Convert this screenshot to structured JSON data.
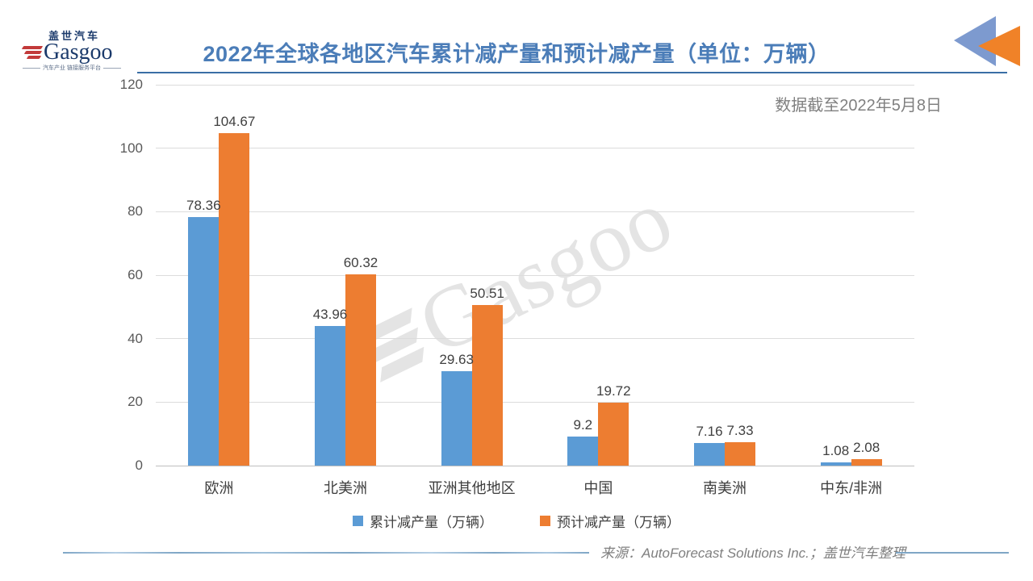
{
  "header": {
    "logo": {
      "cn": "盖世汽车",
      "en": "Gasgoo",
      "tagline": "汽车产业 链接服务平台",
      "stripes_icon": "logo-stripes-icon"
    },
    "title": "2022年全球各地区汽车累计减产量和预计减产量（单位：万辆）",
    "corner_icon": "double-triangle-icon"
  },
  "note": "数据截至2022年5月8日",
  "chart_data": {
    "type": "bar",
    "title": "2022年全球各地区汽车累计减产量和预计减产量（单位：万辆）",
    "categories": [
      "欧洲",
      "北美洲",
      "亚洲其他地区",
      "中国",
      "南美洲",
      "中东/非洲"
    ],
    "series": [
      {
        "name": "累计减产量（万辆）",
        "color": "#5B9BD5",
        "values": [
          78.36,
          43.96,
          29.63,
          9.2,
          7.16,
          1.08
        ]
      },
      {
        "name": "预计减产量（万辆）",
        "color": "#ED7D31",
        "values": [
          104.67,
          60.32,
          50.51,
          19.72,
          7.33,
          2.08
        ]
      }
    ],
    "xlabel": "",
    "ylabel": "",
    "ylim": [
      0,
      120
    ],
    "yticks": [
      0,
      20,
      40,
      60,
      80,
      100,
      120
    ],
    "grid": true,
    "value_labels": true,
    "legend_position": "bottom"
  },
  "watermark": "Gasgoo",
  "footer": {
    "source": "来源：AutoForecast Solutions Inc.；盖世汽车整理"
  },
  "colors": {
    "bar_blue": "#5B9BD5",
    "bar_orange": "#ED7D31",
    "title": "#4B7DB8",
    "title_underline": "#3A6EA5",
    "note_gray": "#808080",
    "tick_gray": "#595959",
    "gridline": "#DCDCDC",
    "footer_line": "#7FA6C6",
    "logo_navy": "#1B3A6B",
    "logo_red": "#C23A3A",
    "corner_triangle_blue": "#7D9ACF",
    "corner_triangle_orange": "#F08228"
  }
}
